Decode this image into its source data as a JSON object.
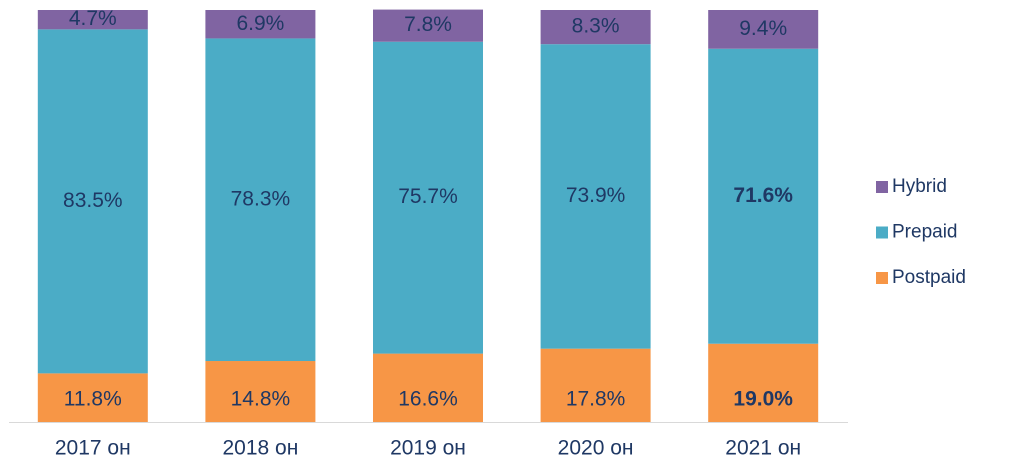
{
  "chart_data": {
    "type": "stacked_bar",
    "categories": [
      "2017 он",
      "2018 он",
      "2019 он",
      "2020 он",
      "2021 он"
    ],
    "series": [
      {
        "name": "Postpaid",
        "color": "#f79646",
        "values": [
          11.8,
          14.8,
          16.6,
          17.8,
          19.0
        ],
        "value_labels": [
          "11.8%",
          "14.8%",
          "16.6%",
          "17.8%",
          "19.0%"
        ]
      },
      {
        "name": "Prepaid",
        "color": "#4bacc6",
        "values": [
          83.5,
          78.3,
          75.7,
          73.9,
          71.6
        ],
        "value_labels": [
          "83.5%",
          "78.3%",
          "75.7%",
          "73.9%",
          "71.6%"
        ]
      },
      {
        "name": "Hybrid",
        "color": "#8064a2",
        "values": [
          4.7,
          6.9,
          7.8,
          8.3,
          9.4
        ],
        "value_labels": [
          "4.7%",
          "6.9%",
          "7.8%",
          "8.3%",
          "9.4%"
        ]
      }
    ],
    "ylim": [
      0,
      100
    ]
  }
}
